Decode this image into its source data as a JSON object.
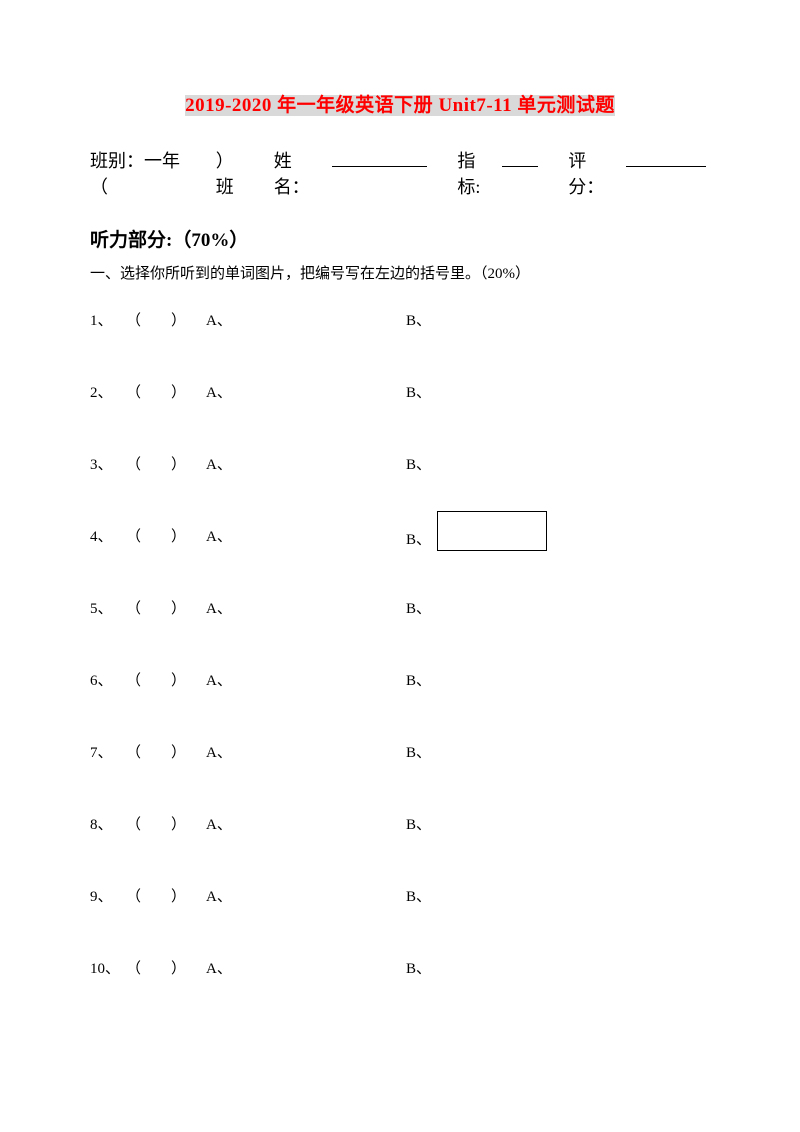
{
  "title": {
    "part1": "2019-2020",
    "part2": " 年一年级英语下册 ",
    "part3": "Unit7-11",
    "part4": " 单元测试题"
  },
  "info": {
    "class_label": "班别：一年（",
    "class_suffix": "）班",
    "name_label": "姓名：",
    "target_label": "指标:",
    "score_label": "评分："
  },
  "section": {
    "heading": "听力部分:（70%）",
    "instruction": "一、选择你所听到的单词图片，把编号写在左边的括号里。（20%）"
  },
  "options": {
    "a": "A、",
    "b": "B、"
  },
  "questions": [
    {
      "num": "1、",
      "paren": "（　　）",
      "box": false
    },
    {
      "num": "2、",
      "paren": "（　　）",
      "box": false
    },
    {
      "num": "3、",
      "paren": "（　　）",
      "box": false
    },
    {
      "num": "4、",
      "paren": "（　　）",
      "box": true
    },
    {
      "num": "5、",
      "paren": "（　　）",
      "box": false
    },
    {
      "num": "6、",
      "paren": "（　　）",
      "box": false
    },
    {
      "num": "7、",
      "paren": "（　　）",
      "box": false
    },
    {
      "num": "8、",
      "paren": "（　　）",
      "box": false
    },
    {
      "num": "9、",
      "paren": "（　　）",
      "box": false
    },
    {
      "num": "10、",
      "paren": "（　　）",
      "box": false
    }
  ]
}
